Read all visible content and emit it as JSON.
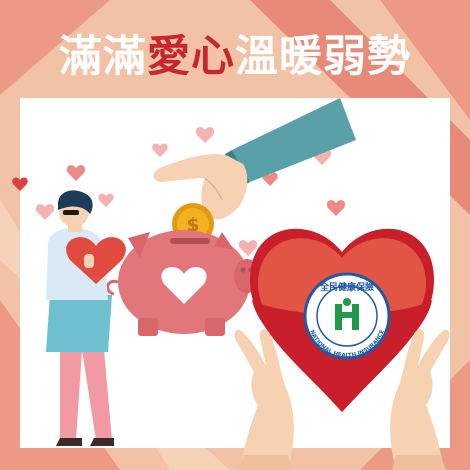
{
  "headline": {
    "part1": "滿滿",
    "part2": "愛心",
    "part3": "溫暖弱勢"
  },
  "logo": {
    "name_zh": "全民健康保險",
    "name_en": "NATIONAL HEALTH INSURANCE"
  },
  "colors": {
    "background_peach": "#f2c2a6",
    "background_salmon": "#ec9a86",
    "headline_white": "#ffffff",
    "headline_accent": "#c8262e",
    "heart_red": "#d9423f",
    "piggy_pink": "#e2767a",
    "sleeve_teal": "#5aa0a8",
    "coin_gold": "#f2b321",
    "logo_blue": "#1e5aa8",
    "logo_green": "#1f9a48"
  },
  "icons": {
    "piggy_bank": "piggy-bank-icon",
    "coin": "dollar-coin-icon",
    "heart": "heart-icon",
    "logo": "nhi-logo-icon"
  }
}
